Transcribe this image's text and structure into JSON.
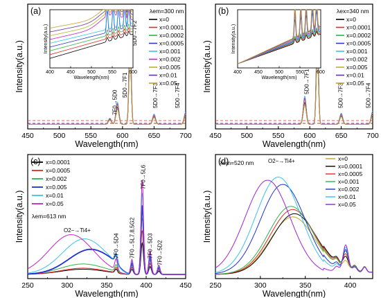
{
  "chart_data": [
    {
      "id": "a",
      "type": "line",
      "panel_label": "(a)",
      "title": "",
      "xlabel": "Wavelength(nm)",
      "ylabel": "Intensity(a.u.)",
      "xlim": [
        450,
        700
      ],
      "xticks": [
        "450",
        "500",
        "550",
        "600",
        "650",
        "700"
      ],
      "yticks_shown": false,
      "condition_label": "λem=300 nm",
      "legend_title": "",
      "legend_position": "top-right",
      "series": [
        {
          "name": "x=0",
          "color": "#000000"
        },
        {
          "name": "x=0.0001",
          "color": "#e8261d"
        },
        {
          "name": "x=0.0002",
          "color": "#2bb34a"
        },
        {
          "name": "x=0.0005",
          "color": "#2b38d1"
        },
        {
          "name": "x=0.001",
          "color": "#36c3e8"
        },
        {
          "name": "x=0.002",
          "color": "#c71fc7"
        },
        {
          "name": "x=0.005",
          "color": "#b3b32d"
        },
        {
          "name": "x=0.01",
          "color": "#6a2fa8"
        },
        {
          "name": "x=0.05",
          "color": "#c7a02b"
        }
      ],
      "peaks_nm": [
        580,
        592,
        612,
        650,
        700
      ],
      "peak_rel": [
        0.06,
        0.22,
        1.0,
        0.1,
        0.12
      ],
      "annotations": [
        "7F0→5D0",
        "5D0→7F1",
        "5D0→7F2",
        "5D0→7F3",
        "5D0→7F4"
      ],
      "inset": {
        "xlabel": "Wavelength(nm)",
        "ylabel": "Intensity(a.u.)",
        "xlim": [
          400,
          600
        ],
        "xticks": [
          "400",
          "450",
          "500",
          "550",
          "600"
        ]
      }
    },
    {
      "id": "b",
      "type": "line",
      "panel_label": "(b)",
      "title": "",
      "xlabel": "Wavelength(nm)",
      "ylabel": "Intensity(a.u.)",
      "xlim": [
        450,
        700
      ],
      "xticks": [
        "450",
        "500",
        "550",
        "600",
        "650",
        "700"
      ],
      "yticks_shown": false,
      "condition_label": "λex=340 nm",
      "legend_position": "top-right",
      "series": [
        {
          "name": "x=0",
          "color": "#000000"
        },
        {
          "name": "x=0.0001",
          "color": "#e8261d"
        },
        {
          "name": "x=0.0002",
          "color": "#2bb34a"
        },
        {
          "name": "x=0.0005",
          "color": "#2b38d1"
        },
        {
          "name": "x=0.001",
          "color": "#36c3e8"
        },
        {
          "name": "x=0.002",
          "color": "#c71fc7"
        },
        {
          "name": "x=0.005",
          "color": "#b3b32d"
        },
        {
          "name": "x=0.01",
          "color": "#6a2fa8"
        },
        {
          "name": "x=0.05",
          "color": "#c7a02b"
        }
      ],
      "peaks_nm": [
        592,
        612,
        650,
        700
      ],
      "peak_rel": [
        0.28,
        1.0,
        0.11,
        0.13
      ],
      "annotations": [
        "5D0→7F1",
        "5D0→7F2",
        "5D0→7F3",
        "5D0→7F4"
      ],
      "inset": {
        "xlabel": "Wavelength(nm)",
        "ylabel": "Intensity(a.u.)",
        "xlim": [
          400,
          600
        ],
        "xticks": [
          "400",
          "450",
          "500",
          "550",
          "600"
        ]
      }
    },
    {
      "id": "c",
      "type": "line",
      "panel_label": "(c)",
      "title": "",
      "xlabel": "Wavelength(nm)",
      "ylabel": "Intensity(a.u.)",
      "xlim": [
        250,
        450
      ],
      "xticks": [
        "250",
        "300",
        "350",
        "400",
        "450"
      ],
      "yticks_shown": false,
      "condition_label": "λem=613 nm",
      "legend_position": "top-left",
      "series": [
        {
          "name": "x=0.0001",
          "color": "#000000",
          "band_center": 320,
          "band_amp": 0.05
        },
        {
          "name": "x=0.0005",
          "color": "#e8261d",
          "band_center": 320,
          "band_amp": 0.06
        },
        {
          "name": "x=0.002",
          "color": "#2bb34a",
          "band_center": 320,
          "band_amp": 0.1
        },
        {
          "name": "x=0.005",
          "color": "#1f2fd1",
          "band_center": 330,
          "band_amp": 0.24
        },
        {
          "name": "x=0.01",
          "color": "#36c3e8",
          "band_center": 322,
          "band_amp": 0.34
        },
        {
          "name": "x=0.05",
          "color": "#c71fc7",
          "band_center": 305,
          "band_amp": 0.38
        }
      ],
      "lines_nm": [
        362,
        382,
        395,
        405,
        416
      ],
      "line_rel": [
        0.12,
        0.16,
        1.0,
        0.25,
        0.1
      ],
      "annotations": [
        "O2−→Ti4+",
        "7F0→5D4",
        "7F0→5L7,8,5G2",
        "7F0→5L6",
        "7F0→5D3",
        "7F0→5D2"
      ]
    },
    {
      "id": "d",
      "type": "line",
      "panel_label": "(d)",
      "title": "",
      "xlabel": "Wavelength(nm)",
      "ylabel": "Intensity(a.u.)",
      "xlim": [
        250,
        425
      ],
      "xticks": [
        "250",
        "300",
        "350",
        "400"
      ],
      "yticks_shown": false,
      "condition_label": "λem=520 nm",
      "legend_position": "top-right",
      "series": [
        {
          "name": "x=0",
          "color": "#c7a02b",
          "band_center": 336,
          "band_amp": 0.55
        },
        {
          "name": "x=0.0001",
          "color": "#000000",
          "band_center": 338,
          "band_amp": 0.58
        },
        {
          "name": "x=0.0005",
          "color": "#e8261d",
          "band_center": 336,
          "band_amp": 0.62
        },
        {
          "name": "x=0.001",
          "color": "#2bb34a",
          "band_center": 334,
          "band_amp": 0.65
        },
        {
          "name": "x=0.002",
          "color": "#1f2fd1",
          "band_center": 325,
          "band_amp": 0.86
        },
        {
          "name": "x=0.01",
          "color": "#36c3e8",
          "band_center": 320,
          "band_amp": 0.93
        },
        {
          "name": "x=0.05",
          "color": "#a020d8",
          "band_center": 308,
          "band_amp": 0.9
        }
      ],
      "lines_nm": [
        385,
        395,
        405,
        416
      ],
      "annotations": [
        "O2−→Ti4+"
      ]
    }
  ]
}
